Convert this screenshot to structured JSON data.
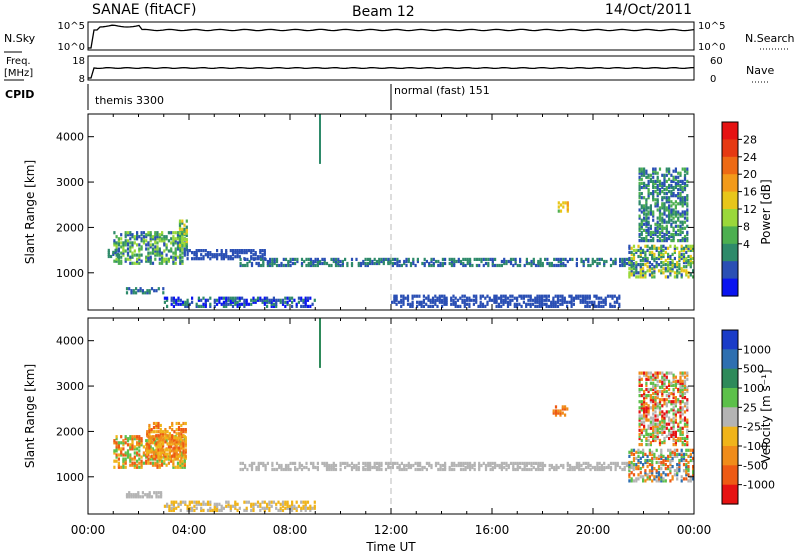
{
  "header": {
    "station": "SANAE (fitACF)",
    "beam": "Beam 12",
    "date": "14/Oct/2011"
  },
  "nsky_panel": {
    "left_label": "N.Sky",
    "left_ticks": [
      "10^5",
      "10^0"
    ],
    "right_ticks": [
      "10^5",
      "10^0"
    ],
    "right_label": "N.Search"
  },
  "freq_panel": {
    "left_label_1": "Freq.",
    "left_label_2": "[MHz]",
    "left_ticks": [
      "18",
      "8"
    ],
    "right_ticks": [
      "60",
      "0"
    ],
    "right_label": "Nave"
  },
  "cpid": {
    "label": "CPID",
    "segments": [
      {
        "start_hour": 0.0,
        "text": "themis 3300"
      },
      {
        "start_hour": 12.0,
        "text": "normal (fast) 151"
      }
    ]
  },
  "chart_data": [
    {
      "type": "heatmap",
      "name": "power",
      "ylabel": "Slant Range [km]",
      "xlim": [
        0,
        24
      ],
      "ylim": [
        180,
        4500
      ],
      "yticks": [
        1000,
        2000,
        3000,
        4000
      ],
      "colorbar": {
        "label": "Power [dB]",
        "range": [
          0,
          32
        ],
        "ticks": [
          "4",
          "8",
          "12",
          "16",
          "20",
          "24",
          "28"
        ],
        "colors": [
          "#0a14f0",
          "#2a4fb4",
          "#2e8a6a",
          "#4caf50",
          "#9ad83a",
          "#e8c61a",
          "#f39a1a",
          "#ee6a14",
          "#e63912",
          "#e61212"
        ]
      },
      "regions": [
        {
          "x": [
            1.0,
            3.8
          ],
          "y": [
            1200,
            1900
          ],
          "levels": [
            1,
            2,
            3,
            4
          ]
        },
        {
          "x": [
            3.6,
            3.9
          ],
          "y": [
            1500,
            2200
          ],
          "levels": [
            2,
            3,
            4,
            5
          ]
        },
        {
          "x": [
            0.6,
            1.2
          ],
          "y": [
            1350,
            1500
          ],
          "levels": [
            1,
            2
          ]
        },
        {
          "x": [
            1.5,
            3.0
          ],
          "y": [
            550,
            650
          ],
          "levels": [
            1,
            2
          ]
        },
        {
          "x": [
            3.9,
            7.0
          ],
          "y": [
            1300,
            1500
          ],
          "levels": [
            1
          ]
        },
        {
          "x": [
            3.0,
            9.0
          ],
          "y": [
            250,
            450
          ],
          "levels": [
            0,
            1,
            2
          ]
        },
        {
          "x": [
            6.0,
            21.6
          ],
          "y": [
            1150,
            1300
          ],
          "levels": [
            1,
            2
          ]
        },
        {
          "x": [
            18.6,
            19.0
          ],
          "y": [
            2350,
            2550
          ],
          "levels": [
            3,
            5,
            6
          ]
        },
        {
          "x": [
            21.4,
            24.0
          ],
          "y": [
            900,
            1600
          ],
          "levels": [
            1,
            2,
            3,
            4,
            5
          ]
        },
        {
          "x": [
            21.8,
            23.7
          ],
          "y": [
            1700,
            3300
          ],
          "levels": [
            1,
            2,
            3
          ]
        },
        {
          "x": [
            12.0,
            21.0
          ],
          "y": [
            250,
            500
          ],
          "levels": [
            1
          ]
        }
      ],
      "spike": {
        "x": 9.15,
        "y": [
          3400,
          4500
        ],
        "level": 2
      }
    },
    {
      "type": "heatmap",
      "name": "velocity",
      "ylabel": "Slant Range [km]",
      "xlim": [
        0,
        24
      ],
      "ylim": [
        180,
        4500
      ],
      "yticks": [
        1000,
        2000,
        3000,
        4000
      ],
      "xticks": [
        "00:00",
        "04:00",
        "08:00",
        "12:00",
        "16:00",
        "20:00",
        "00:00"
      ],
      "xlabel": "Time UT",
      "colorbar": {
        "label": "Velocity [m s⁻¹]",
        "ticks": [
          "1000",
          "500",
          "100",
          "25",
          "-25",
          "-100",
          "-500",
          "-1000"
        ],
        "colors": [
          "#1a3cc8",
          "#2e6fb0",
          "#2e8a5a",
          "#5cc04a",
          "#b4b4b4",
          "#f0b41a",
          "#f08c1a",
          "#ee5a14",
          "#e61212"
        ]
      },
      "regions": [
        {
          "x": [
            1.0,
            3.8
          ],
          "y": [
            1200,
            1900
          ],
          "levels": [
            3,
            5,
            6,
            7
          ]
        },
        {
          "x": [
            2.3,
            3.9
          ],
          "y": [
            1400,
            2200
          ],
          "levels": [
            5,
            6,
            7
          ]
        },
        {
          "x": [
            1.5,
            3.0
          ],
          "y": [
            550,
            650
          ],
          "levels": [
            4
          ]
        },
        {
          "x": [
            3.0,
            9.0
          ],
          "y": [
            250,
            450
          ],
          "levels": [
            4,
            5
          ]
        },
        {
          "x": [
            6.0,
            21.6
          ],
          "y": [
            1150,
            1300
          ],
          "levels": [
            4
          ]
        },
        {
          "x": [
            18.4,
            19.0
          ],
          "y": [
            2350,
            2550
          ],
          "levels": [
            6,
            7
          ]
        },
        {
          "x": [
            21.4,
            24.0
          ],
          "y": [
            900,
            1600
          ],
          "levels": [
            1,
            3,
            4,
            6,
            7
          ]
        },
        {
          "x": [
            21.8,
            23.7
          ],
          "y": [
            1700,
            3300
          ],
          "levels": [
            3,
            4,
            6,
            8
          ]
        }
      ],
      "spike": {
        "x": 9.15,
        "y": [
          3400,
          4500
        ],
        "level": 2
      }
    }
  ]
}
